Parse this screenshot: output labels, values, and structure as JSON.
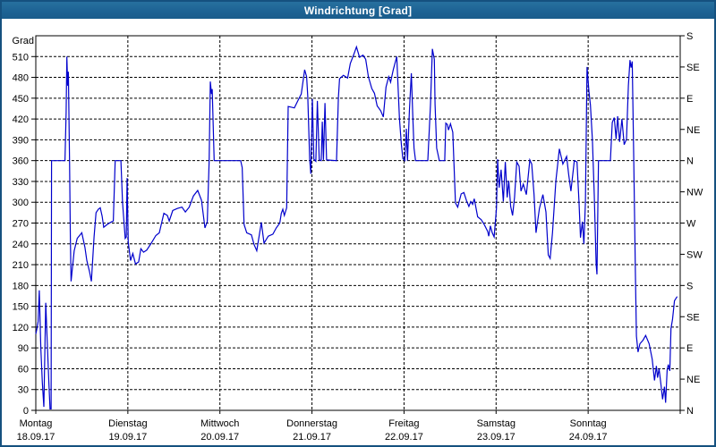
{
  "window": {
    "title": "Windrichtung [Grad]"
  },
  "colors": {
    "titlebar_bg": "#1d6394",
    "window_border": "#15517f",
    "line_color": "#0000cc",
    "grid_color": "#000000",
    "plot_bg": "#ffffff"
  },
  "chart_data": {
    "type": "line",
    "title": "Windrichtung [Grad]",
    "ylabel": "Grad",
    "ylim": [
      0,
      540
    ],
    "y_tick_step": 30,
    "xlim_hours": [
      0,
      168
    ],
    "grid": true,
    "legend": "none",
    "x_days": [
      {
        "name": "Montag",
        "date": "18.09.17"
      },
      {
        "name": "Dienstag",
        "date": "19.09.17"
      },
      {
        "name": "Mittwoch",
        "date": "20.09.17"
      },
      {
        "name": "Donnerstag",
        "date": "21.09.17"
      },
      {
        "name": "Freitag",
        "date": "22.09.17"
      },
      {
        "name": "Samstag",
        "date": "23.09.17"
      },
      {
        "name": "Sonntag",
        "date": "24.09.17"
      }
    ],
    "right_axis_labels": [
      {
        "deg": 0,
        "label": "N"
      },
      {
        "deg": 45,
        "label": "NE"
      },
      {
        "deg": 90,
        "label": "E"
      },
      {
        "deg": 135,
        "label": "SE"
      },
      {
        "deg": 180,
        "label": "S"
      },
      {
        "deg": 225,
        "label": "SW"
      },
      {
        "deg": 270,
        "label": "W"
      },
      {
        "deg": 315,
        "label": "NW"
      },
      {
        "deg": 360,
        "label": "N"
      },
      {
        "deg": 405,
        "label": "NE"
      },
      {
        "deg": 450,
        "label": "E"
      },
      {
        "deg": 495,
        "label": "SE"
      },
      {
        "deg": 540,
        "label": "S"
      }
    ],
    "series": [
      {
        "name": "Windrichtung",
        "points": [
          [
            0,
            110
          ],
          [
            0.3,
            118
          ],
          [
            0.6,
            128
          ],
          [
            0.9,
            173
          ],
          [
            1.3,
            90
          ],
          [
            1.7,
            40
          ],
          [
            2.1,
            5
          ],
          [
            2.6,
            155
          ],
          [
            3.0,
            95
          ],
          [
            3.4,
            40
          ],
          [
            3.7,
            2
          ],
          [
            4.0,
            2
          ],
          [
            4.1,
            360
          ],
          [
            7.6,
            360
          ],
          [
            7.9,
            430
          ],
          [
            8.1,
            510
          ],
          [
            8.3,
            468
          ],
          [
            8.5,
            488
          ],
          [
            8.8,
            360
          ],
          [
            9.0,
            250
          ],
          [
            9.2,
            186
          ],
          [
            10.0,
            230
          ],
          [
            10.8,
            248
          ],
          [
            12.0,
            256
          ],
          [
            12.8,
            235
          ],
          [
            13.3,
            216
          ],
          [
            14.0,
            200
          ],
          [
            14.5,
            186
          ],
          [
            15.2,
            250
          ],
          [
            15.7,
            285
          ],
          [
            16.3,
            290
          ],
          [
            16.8,
            292
          ],
          [
            17.3,
            280
          ],
          [
            17.7,
            264
          ],
          [
            18.6,
            268
          ],
          [
            19.5,
            271
          ],
          [
            20.2,
            273
          ],
          [
            20.7,
            360
          ],
          [
            22.2,
            360
          ],
          [
            22.6,
            300
          ],
          [
            22.9,
            279
          ],
          [
            23.3,
            248
          ],
          [
            23.6,
            250
          ],
          [
            23.8,
            335
          ],
          [
            24.1,
            242
          ],
          [
            24.7,
            216
          ],
          [
            25.3,
            226
          ],
          [
            26.0,
            211
          ],
          [
            26.8,
            214
          ],
          [
            27.4,
            233
          ],
          [
            28.1,
            228
          ],
          [
            28.9,
            231
          ],
          [
            30.1,
            241
          ],
          [
            31.3,
            252
          ],
          [
            32.2,
            256
          ],
          [
            33.4,
            284
          ],
          [
            34.3,
            281
          ],
          [
            34.8,
            273
          ],
          [
            35.7,
            288
          ],
          [
            36.9,
            291
          ],
          [
            38.1,
            293
          ],
          [
            39.0,
            286
          ],
          [
            40.0,
            293
          ],
          [
            41.1,
            309
          ],
          [
            42.2,
            317
          ],
          [
            43.2,
            303
          ],
          [
            44.1,
            263
          ],
          [
            44.7,
            272
          ],
          [
            45.2,
            360
          ],
          [
            45.5,
            474
          ],
          [
            45.8,
            456
          ],
          [
            46.0,
            463
          ],
          [
            46.5,
            360
          ],
          [
            48.0,
            360
          ],
          [
            53.4,
            360
          ],
          [
            53.8,
            350
          ],
          [
            54.3,
            268
          ],
          [
            55.0,
            256
          ],
          [
            56.2,
            253
          ],
          [
            56.9,
            239
          ],
          [
            57.6,
            230
          ],
          [
            58.8,
            271
          ],
          [
            59.5,
            241
          ],
          [
            60.6,
            251
          ],
          [
            61.8,
            254
          ],
          [
            62.7,
            263
          ],
          [
            63.6,
            270
          ],
          [
            64.0,
            284
          ],
          [
            64.4,
            290
          ],
          [
            64.8,
            281
          ],
          [
            65.4,
            292
          ],
          [
            65.8,
            438
          ],
          [
            67.4,
            436
          ],
          [
            68.3,
            446
          ],
          [
            69.2,
            456
          ],
          [
            70.1,
            491
          ],
          [
            70.6,
            481
          ],
          [
            70.9,
            452
          ],
          [
            71.4,
            362
          ],
          [
            71.7,
            341
          ],
          [
            72.1,
            449
          ],
          [
            72.5,
            362
          ],
          [
            73.0,
            359
          ],
          [
            73.4,
            446
          ],
          [
            73.9,
            361
          ],
          [
            74.4,
            360
          ],
          [
            74.7,
            416
          ],
          [
            75.0,
            361
          ],
          [
            75.4,
            443
          ],
          [
            75.8,
            361
          ],
          [
            78.4,
            360
          ],
          [
            78.9,
            451
          ],
          [
            79.2,
            478
          ],
          [
            80.2,
            483
          ],
          [
            81.3,
            479
          ],
          [
            82.0,
            500
          ],
          [
            82.9,
            513
          ],
          [
            83.6,
            524
          ],
          [
            84.4,
            509
          ],
          [
            85.3,
            512
          ],
          [
            86.0,
            506
          ],
          [
            86.7,
            481
          ],
          [
            87.6,
            464
          ],
          [
            88.3,
            457
          ],
          [
            89.0,
            439
          ],
          [
            89.9,
            432
          ],
          [
            90.6,
            423
          ],
          [
            91.3,
            466
          ],
          [
            92.0,
            481
          ],
          [
            92.5,
            473
          ],
          [
            93.2,
            491
          ],
          [
            94.1,
            510
          ],
          [
            94.8,
            421
          ],
          [
            95.3,
            384
          ],
          [
            95.7,
            363
          ],
          [
            96.2,
            360
          ],
          [
            96.6,
            406
          ],
          [
            96.9,
            360
          ],
          [
            97.4,
            431
          ],
          [
            97.9,
            486
          ],
          [
            98.3,
            421
          ],
          [
            98.6,
            378
          ],
          [
            99.0,
            360
          ],
          [
            102.2,
            360
          ],
          [
            102.9,
            441
          ],
          [
            103.4,
            521
          ],
          [
            103.9,
            506
          ],
          [
            104.1,
            441
          ],
          [
            104.5,
            378
          ],
          [
            105.2,
            360
          ],
          [
            106.6,
            360
          ],
          [
            106.9,
            414
          ],
          [
            107.3,
            412
          ],
          [
            107.6,
            404
          ],
          [
            108.1,
            413
          ],
          [
            108.7,
            401
          ],
          [
            109.4,
            299
          ],
          [
            110.0,
            293
          ],
          [
            110.9,
            312
          ],
          [
            111.6,
            314
          ],
          [
            112.3,
            302
          ],
          [
            112.9,
            294
          ],
          [
            113.4,
            301
          ],
          [
            113.9,
            297
          ],
          [
            114.3,
            305
          ],
          [
            115.2,
            279
          ],
          [
            116.1,
            275
          ],
          [
            116.9,
            268
          ],
          [
            117.8,
            258
          ],
          [
            118.1,
            251
          ],
          [
            118.5,
            266
          ],
          [
            119.0,
            256
          ],
          [
            119.5,
            250
          ],
          [
            120.1,
            291
          ],
          [
            120.4,
            362
          ],
          [
            120.8,
            321
          ],
          [
            121.3,
            347
          ],
          [
            121.9,
            301
          ],
          [
            122.4,
            358
          ],
          [
            122.9,
            307
          ],
          [
            123.3,
            331
          ],
          [
            123.8,
            294
          ],
          [
            124.3,
            281
          ],
          [
            124.8,
            307
          ],
          [
            125.4,
            358
          ],
          [
            126.0,
            352
          ],
          [
            126.5,
            316
          ],
          [
            127.1,
            326
          ],
          [
            127.9,
            311
          ],
          [
            128.8,
            361
          ],
          [
            129.3,
            355
          ],
          [
            129.9,
            311
          ],
          [
            130.4,
            256
          ],
          [
            131.3,
            291
          ],
          [
            132.2,
            311
          ],
          [
            133.0,
            286
          ],
          [
            133.6,
            224
          ],
          [
            134.1,
            219
          ],
          [
            134.7,
            256
          ],
          [
            135.6,
            331
          ],
          [
            136.5,
            377
          ],
          [
            137.4,
            355
          ],
          [
            138.4,
            366
          ],
          [
            138.9,
            341
          ],
          [
            139.5,
            316
          ],
          [
            140.4,
            360
          ],
          [
            141.1,
            358
          ],
          [
            141.6,
            301
          ],
          [
            142.0,
            249
          ],
          [
            142.5,
            272
          ],
          [
            142.9,
            240
          ],
          [
            143.3,
            300
          ],
          [
            143.7,
            495
          ],
          [
            144.2,
            460
          ],
          [
            144.6,
            440
          ],
          [
            145.1,
            390
          ],
          [
            145.6,
            310
          ],
          [
            146.1,
            210
          ],
          [
            146.3,
            196
          ],
          [
            146.7,
            360
          ],
          [
            149.8,
            360
          ],
          [
            150.3,
            415
          ],
          [
            150.8,
            422
          ],
          [
            151.3,
            391
          ],
          [
            151.7,
            424
          ],
          [
            152.2,
            387
          ],
          [
            152.8,
            420
          ],
          [
            153.4,
            383
          ],
          [
            154.0,
            391
          ],
          [
            154.5,
            468
          ],
          [
            154.9,
            505
          ],
          [
            155.2,
            494
          ],
          [
            155.5,
            503
          ],
          [
            155.9,
            362
          ],
          [
            156.3,
            201
          ],
          [
            156.6,
            107
          ],
          [
            157.0,
            84
          ],
          [
            157.5,
            96
          ],
          [
            158.3,
            101
          ],
          [
            159.0,
            108
          ],
          [
            159.9,
            96
          ],
          [
            160.7,
            74
          ],
          [
            161.3,
            43
          ],
          [
            161.8,
            64
          ],
          [
            162.1,
            47
          ],
          [
            162.5,
            60
          ],
          [
            163.0,
            36
          ],
          [
            163.4,
            16
          ],
          [
            163.9,
            34
          ],
          [
            164.2,
            11
          ],
          [
            164.6,
            58
          ],
          [
            164.9,
            66
          ],
          [
            165.3,
            57
          ],
          [
            165.6,
            118
          ],
          [
            166.0,
            131
          ],
          [
            166.5,
            158
          ],
          [
            167.2,
            164
          ]
        ]
      }
    ]
  }
}
